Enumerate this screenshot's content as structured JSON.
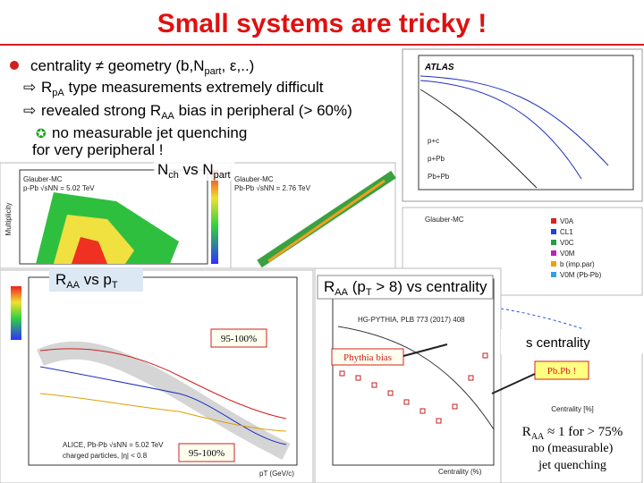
{
  "title": "Small systems are tricky !",
  "bullets": [
    [
      "centrality ≠ geometry (b,N",
      "part",
      ", ε,..)"
    ],
    [
      "R",
      "pA",
      " type measurements extremely difficult"
    ],
    [
      "revealed strong R",
      "AA",
      " bias in peripheral (> 60%)"
    ],
    [
      "no measurable jet quenching"
    ],
    [
      "for very peripheral !"
    ]
  ],
  "labels": {
    "nch_vs_npart": [
      "N",
      "ch",
      " vs N",
      "part"
    ],
    "raa_vs_pt": [
      "R",
      "AA",
      " vs p",
      "T"
    ],
    "raa_vs_centrality": [
      "R",
      "AA",
      " (p",
      "T",
      " > 8) vs centrality"
    ],
    "bin_top": "95-100%",
    "bin_bottom": "95-100%",
    "pythia_bias": "Phythia bias",
    "pbpb": "Pb.Pb !",
    "centrality_fragment": "s centrality",
    "conclusion": [
      [
        "R",
        "AA",
        " ≈ 1 for > 75%"
      ],
      "no (measurable)",
      "jet quenching"
    ]
  },
  "plots": {
    "atlas": {
      "experiment": "ATLAS",
      "legend": [
        "p+c",
        "p+Pb",
        "Pb+Pb"
      ]
    },
    "glauber_ppb": {
      "title": "Glauber-MC",
      "system": "p-Pb √sNN = 5.02 TeV",
      "axis": "Multiplicity"
    },
    "glauber_pbpb": {
      "title": "Glauber-MC",
      "system": "Pb-Pb √sNN = 2.76 TeV"
    },
    "estimators": {
      "title": "Glauber-MC",
      "legend": [
        "V0A",
        "CL1",
        "V0C",
        "V0M",
        "b (imp.par)",
        "V0M (Pb-Pb)"
      ],
      "xlabel": "Centrality [%]"
    },
    "alice_pt": {
      "caption": [
        "ALICE, Pb-Pb √sNN = 5.02 TeV",
        "charged particles, |η| < 0.8"
      ],
      "xlabel": "pT (GeV/c)"
    },
    "alice_cent": {
      "caption": "HG-PYTHIA, PLB 773 (2017) 408",
      "xlabel": "Centrality (%)"
    }
  }
}
